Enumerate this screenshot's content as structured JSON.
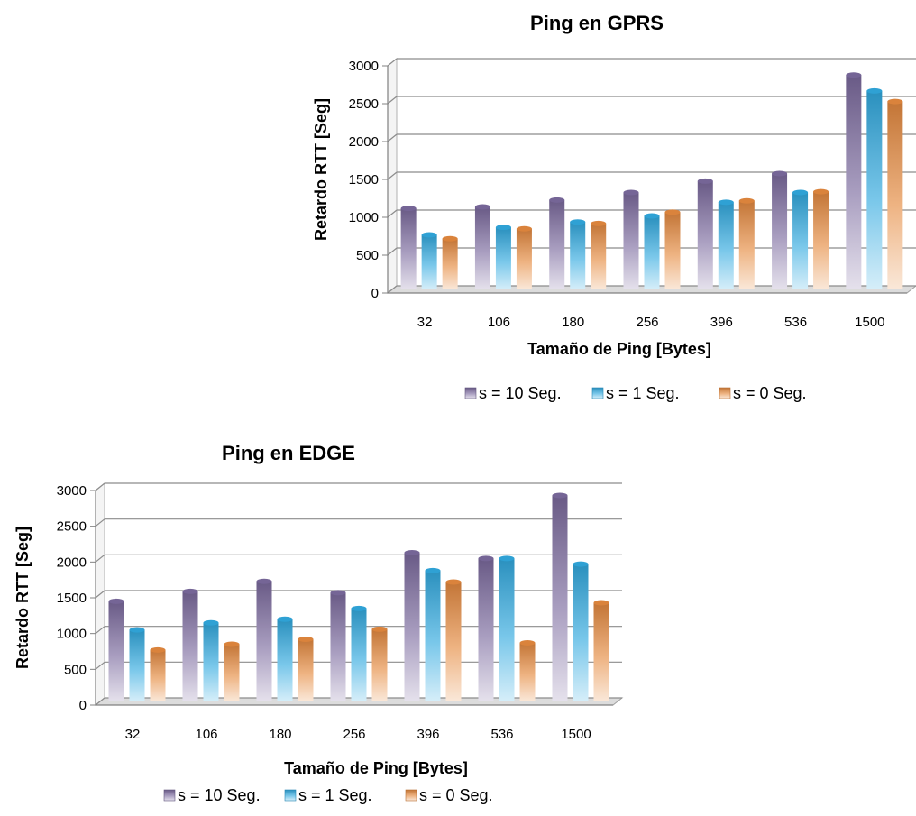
{
  "chart_data": [
    {
      "type": "bar",
      "title": "Ping en GPRS",
      "xlabel": "Tamaño de Ping [Bytes]",
      "ylabel": "Retardo RTT [Seg]",
      "categories": [
        "32",
        "106",
        "180",
        "256",
        "396",
        "536",
        "1500"
      ],
      "ylim": [
        0,
        3000
      ],
      "yticks": [
        "0",
        "500",
        "1000",
        "1500",
        "2000",
        "2500",
        "3000"
      ],
      "grid": true,
      "legend_position": "bottom",
      "series": [
        {
          "name": "s = 10 Seg.",
          "color": "#7b6a9e",
          "values": [
            1070,
            1090,
            1180,
            1280,
            1430,
            1530,
            2830
          ]
        },
        {
          "name": "s = 1 Seg.",
          "color": "#31a9df",
          "values": [
            720,
            820,
            890,
            970,
            1150,
            1280,
            2620
          ]
        },
        {
          "name": "s = 0 Seg.",
          "color": "#e58a3f",
          "values": [
            670,
            800,
            870,
            1020,
            1170,
            1290,
            2480
          ]
        }
      ]
    },
    {
      "type": "bar",
      "title": "Ping en EDGE",
      "xlabel": "Tamaño de Ping [Bytes]",
      "ylabel": "Retardo RTT [Seg]",
      "categories": [
        "32",
        "106",
        "180",
        "256",
        "396",
        "536",
        "1500"
      ],
      "ylim": [
        0,
        3000
      ],
      "yticks": [
        "0",
        "500",
        "1000",
        "1500",
        "2000",
        "2500",
        "3000"
      ],
      "grid": true,
      "legend_position": "bottom",
      "series": [
        {
          "name": "s = 10 Seg.",
          "color": "#7b6a9e",
          "values": [
            1400,
            1540,
            1680,
            1520,
            2080,
            2000,
            2880
          ]
        },
        {
          "name": "s = 1 Seg.",
          "color": "#31a9df",
          "values": [
            1000,
            1100,
            1150,
            1300,
            1830,
            2000,
            1920
          ]
        },
        {
          "name": "s = 0 Seg.",
          "color": "#e58a3f",
          "values": [
            720,
            800,
            870,
            1010,
            1670,
            820,
            1380
          ]
        }
      ]
    }
  ]
}
